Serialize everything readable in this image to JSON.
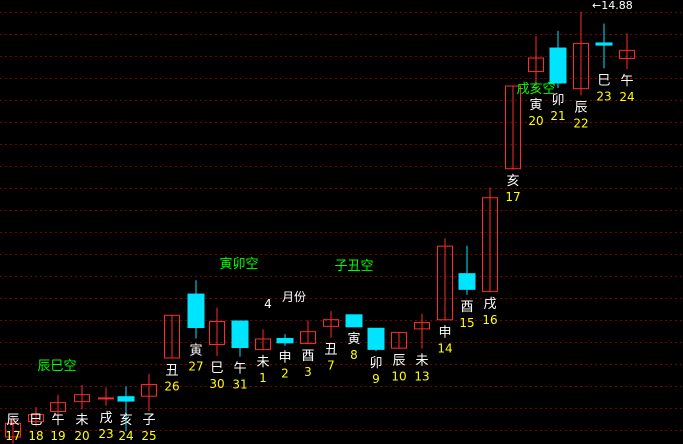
{
  "chart_data": {
    "type": "candlestick",
    "ylim": [
      3.0,
      15.2
    ],
    "high_marker": "14.88",
    "grid": true,
    "colors": {
      "background": "#000000",
      "grid": "#7a0000",
      "up": "#ff2a2a",
      "down": "#00e5ff",
      "branch_label": "#ffffff",
      "day_number": "#ffff00",
      "void_label": "#00ff00"
    },
    "candles": [
      {
        "branch": "辰",
        "day": "17",
        "open": 3.18,
        "close": 3.58,
        "high": 3.78,
        "low": 3.02
      },
      {
        "branch": "巳",
        "day": "18",
        "open": 3.6,
        "close": 3.82,
        "high": 4.02,
        "low": 3.48
      },
      {
        "branch": "午",
        "day": "19",
        "open": 3.88,
        "close": 4.15,
        "high": 4.35,
        "low": 3.72
      },
      {
        "branch": "未",
        "day": "20",
        "open": 4.15,
        "close": 4.37,
        "high": 4.62,
        "low": 3.95
      },
      {
        "branch": "戌",
        "day": "23",
        "open": 4.28,
        "close": 4.28,
        "high": 4.55,
        "low": 4.05
      },
      {
        "branch": "亥",
        "day": "24",
        "open": 4.3,
        "close": 4.18,
        "high": 4.58,
        "low": 3.35
      },
      {
        "branch": "子",
        "day": "25",
        "open": 4.3,
        "close": 4.65,
        "high": 4.92,
        "low": 3.9
      },
      {
        "branch": "丑",
        "day": "26",
        "open": 5.35,
        "close": 6.55,
        "high": 6.55,
        "low": 5.35
      },
      {
        "branch": "寅",
        "day": "27",
        "open": 7.12,
        "close": 6.2,
        "high": 7.5,
        "low": 5.9
      },
      {
        "branch": "巳",
        "day": "30",
        "open": 5.72,
        "close": 6.38,
        "high": 6.75,
        "low": 5.42
      },
      {
        "branch": "午",
        "day": "31",
        "open": 6.38,
        "close": 5.65,
        "high": 6.38,
        "low": 5.4
      },
      {
        "branch": "未",
        "day": "1",
        "open": 5.58,
        "close": 5.9,
        "high": 6.15,
        "low": 5.58
      },
      {
        "branch": "申",
        "day": "2",
        "open": 5.9,
        "close": 5.78,
        "high": 6.02,
        "low": 5.7
      },
      {
        "branch": "酉",
        "day": "3",
        "open": 5.75,
        "close": 6.1,
        "high": 6.4,
        "low": 5.75
      },
      {
        "branch": "丑",
        "day": "7",
        "open": 6.22,
        "close": 6.43,
        "high": 6.65,
        "low": 5.92
      },
      {
        "branch": "寅",
        "day": "8",
        "open": 6.55,
        "close": 6.22,
        "high": 6.55,
        "low": 6.22
      },
      {
        "branch": "卯",
        "day": "9",
        "open": 6.18,
        "close": 5.6,
        "high": 6.18,
        "low": 5.55
      },
      {
        "branch": "辰",
        "day": "10",
        "open": 5.62,
        "close": 6.08,
        "high": 6.08,
        "low": 5.62
      },
      {
        "branch": "未",
        "day": "13",
        "open": 6.15,
        "close": 6.35,
        "high": 6.58,
        "low": 5.62
      },
      {
        "branch": "申",
        "day": "14",
        "open": 6.4,
        "close": 8.45,
        "high": 8.65,
        "low": 6.4
      },
      {
        "branch": "酉",
        "day": "15",
        "open": 7.68,
        "close": 7.25,
        "high": 8.45,
        "low": 7.1
      },
      {
        "branch": "戌",
        "day": "16",
        "open": 7.18,
        "close": 9.78,
        "high": 10.05,
        "low": 7.18
      },
      {
        "branch": "亥",
        "day": "17",
        "open": 10.55,
        "close": 12.85,
        "high": 12.85,
        "low": 10.55
      },
      {
        "branch": "寅",
        "day": "20",
        "open": 13.22,
        "close": 13.62,
        "high": 14.22,
        "low": 12.65
      },
      {
        "branch": "卯",
        "day": "21",
        "open": 13.88,
        "close": 12.92,
        "high": 14.35,
        "low": 12.78
      },
      {
        "branch": "辰",
        "day": "22",
        "open": 12.75,
        "close": 14.02,
        "high": 14.88,
        "low": 12.58
      },
      {
        "branch": "巳",
        "day": "23",
        "open": 14.02,
        "close": 13.96,
        "high": 14.55,
        "low": 13.32
      },
      {
        "branch": "午",
        "day": "24",
        "open": 13.58,
        "close": 13.83,
        "high": 14.28,
        "low": 13.3
      }
    ],
    "annotations": [
      {
        "text": "辰巳空",
        "after": 0
      },
      {
        "text": "寅卯空",
        "after": 9
      },
      {
        "text": "4",
        "after": 10
      },
      {
        "text": "月份",
        "after": 11
      },
      {
        "text": "子丑空",
        "after": 13
      },
      {
        "text": "戌亥空",
        "after": 22
      }
    ]
  }
}
